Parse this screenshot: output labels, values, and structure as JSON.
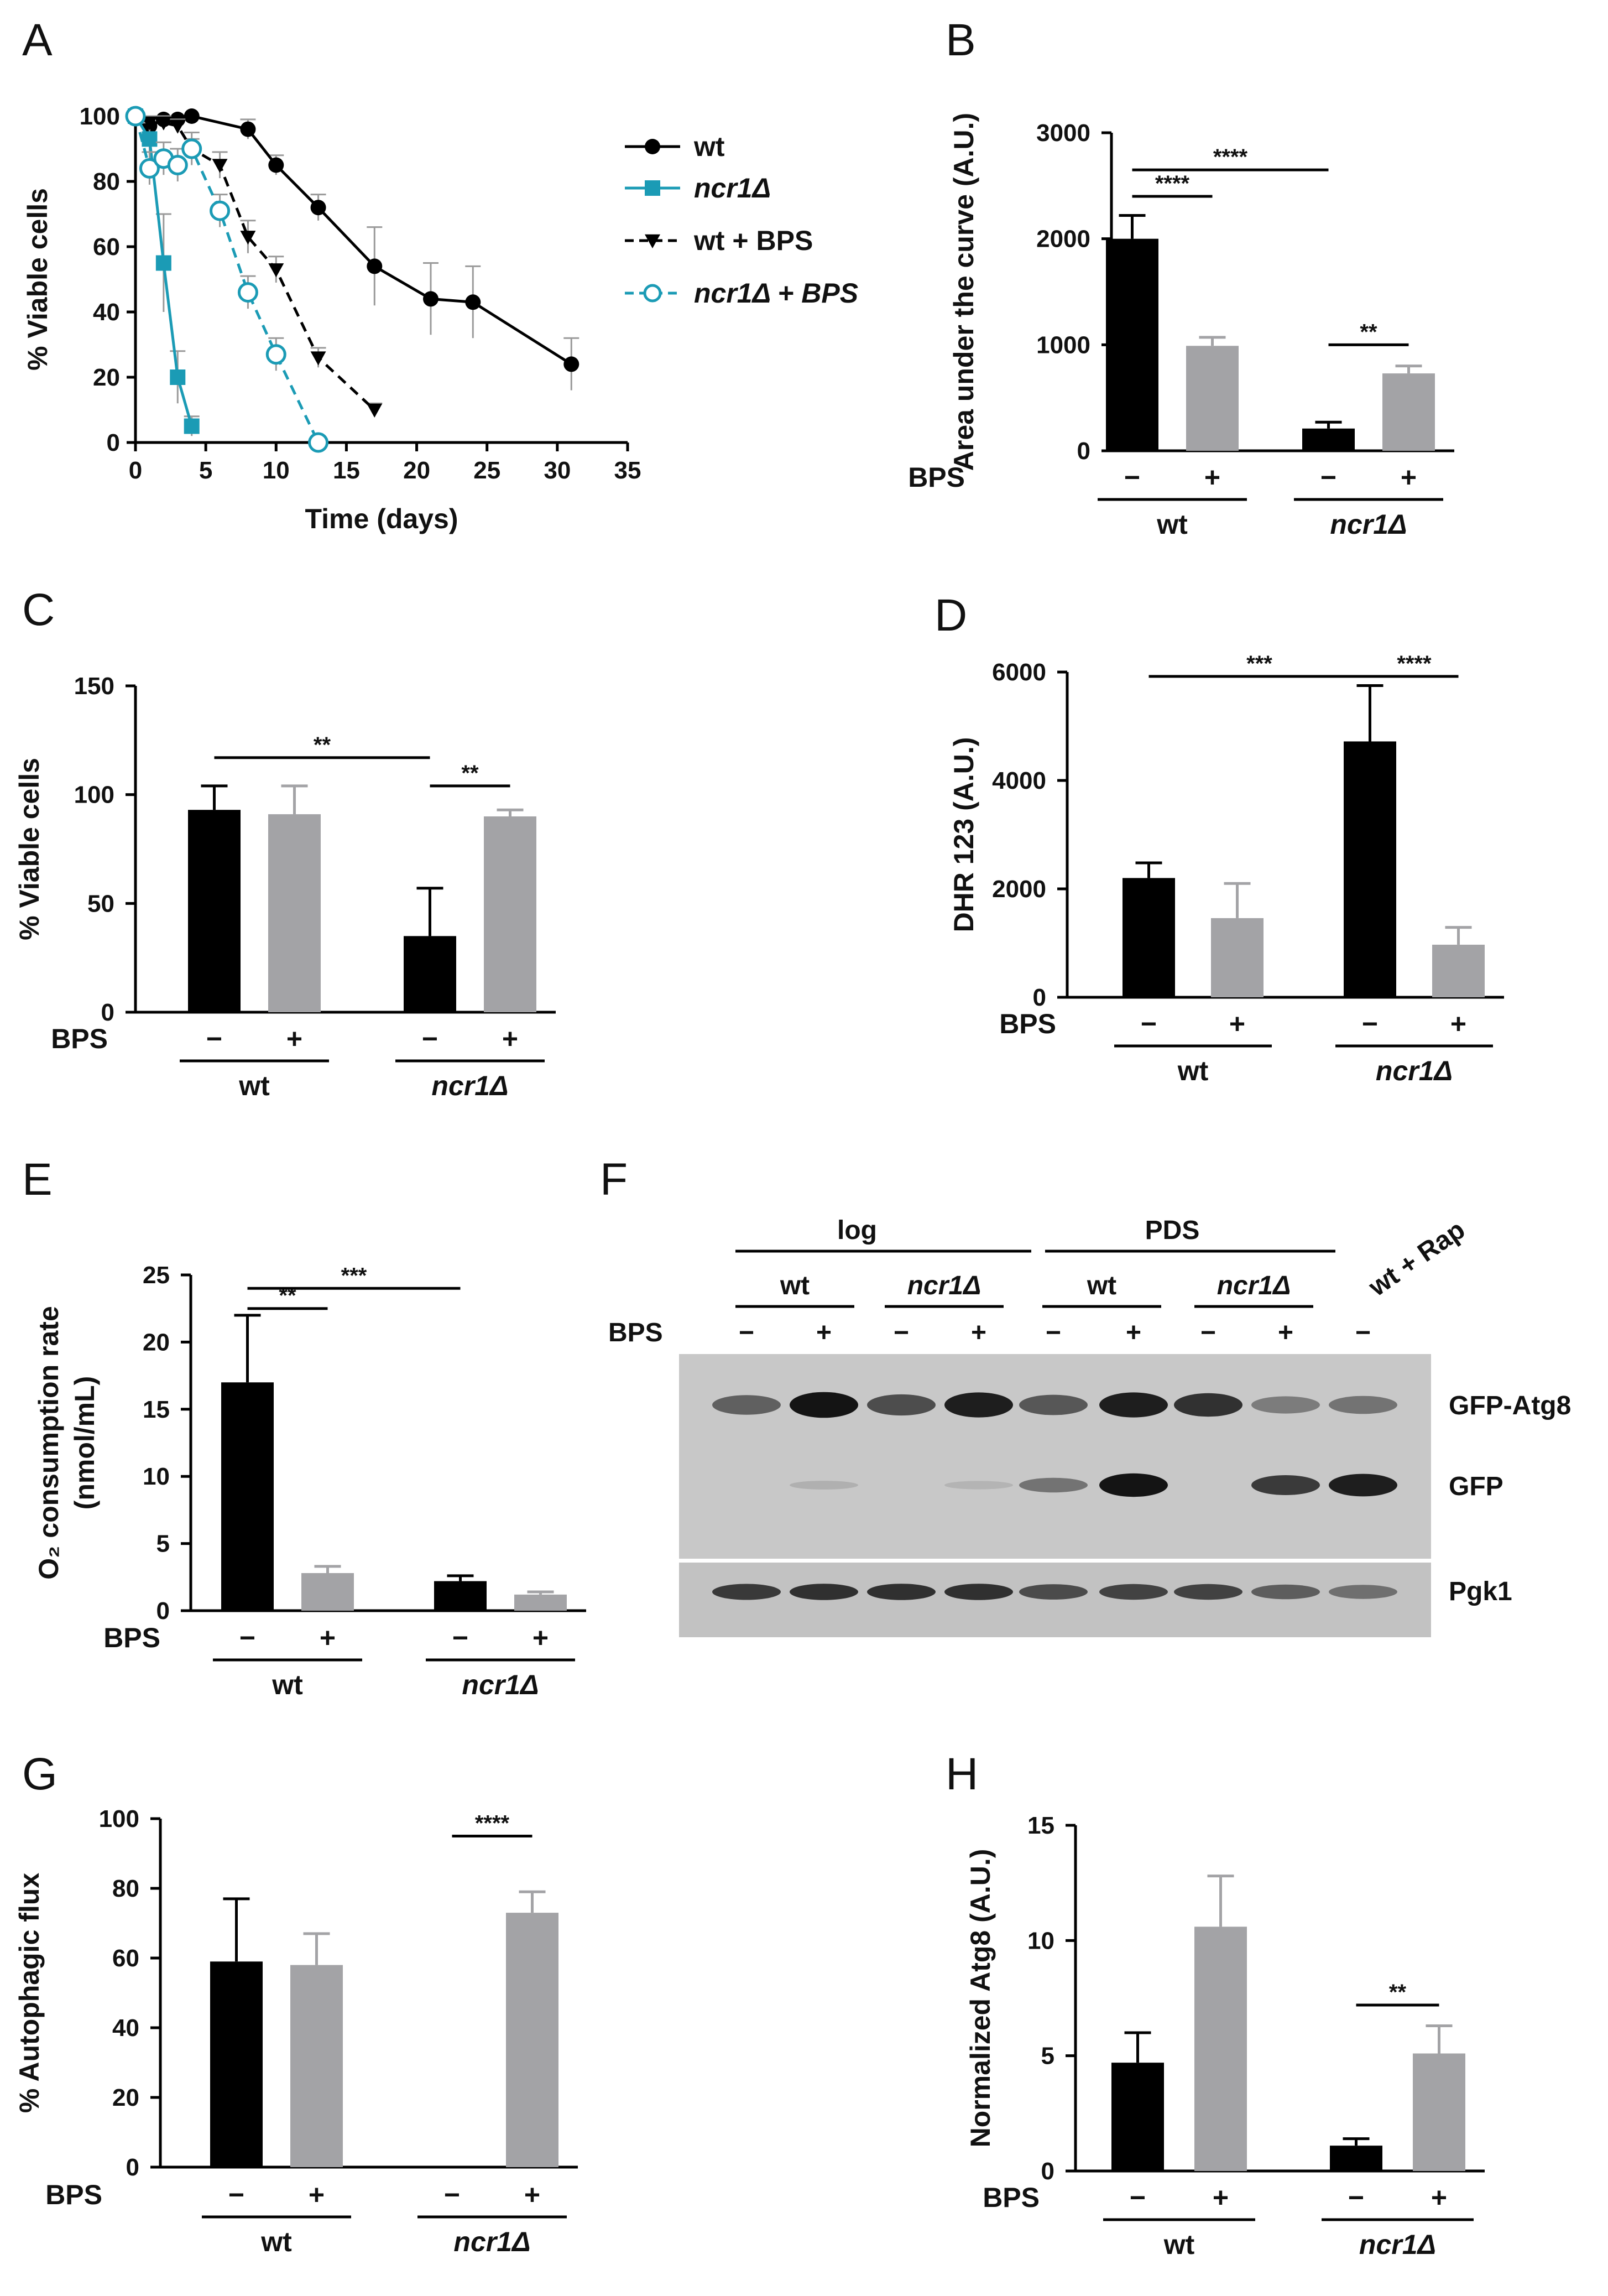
{
  "colors": {
    "black": "#000000",
    "grey": "#a3a3a6",
    "teal": "#1b9bb5",
    "error": "#9a9a9a"
  },
  "panels": {
    "A": {
      "letter": "A",
      "chart_data": {
        "type": "line",
        "xlabel": "Time (days)",
        "ylabel": "% Viable cells",
        "xlim": [
          0,
          35
        ],
        "ylim": [
          0,
          100
        ],
        "xticks": [
          "0",
          "5",
          "10",
          "15",
          "20",
          "25",
          "30",
          "35"
        ],
        "yticks": [
          "0",
          "20",
          "40",
          "60",
          "80",
          "100"
        ],
        "legend_position": "right",
        "series": [
          {
            "name": "wt",
            "color": "#000000",
            "dashed": false,
            "marker": "circle",
            "x": [
              0,
              1,
              2,
              3,
              4,
              8,
              10,
              13,
              17,
              21,
              24,
              31
            ],
            "y": [
              100,
              97,
              99,
              99,
              100,
              96,
              85,
              72,
              54,
              44,
              43,
              24
            ],
            "err": [
              0,
              2,
              2,
              2,
              2,
              3,
              3,
              4,
              12,
              11,
              11,
              8
            ]
          },
          {
            "name": "ncr1Δ",
            "color": "#1b9bb5",
            "dashed": false,
            "marker": "square",
            "x": [
              0,
              1,
              2,
              3,
              4
            ],
            "y": [
              100,
              93,
              55,
              20,
              5
            ],
            "err": [
              0,
              5,
              15,
              8,
              3
            ]
          },
          {
            "name": "wt + BPS",
            "color": "#000000",
            "dashed": true,
            "marker": "triangle",
            "x": [
              0,
              1,
              2,
              3,
              4,
              6,
              8,
              10,
              13,
              17
            ],
            "y": [
              100,
              98,
              98,
              97,
              90,
              85,
              63,
              53,
              26,
              10
            ],
            "err": [
              0,
              2,
              2,
              2,
              3,
              4,
              5,
              4,
              3,
              2
            ]
          },
          {
            "name": "ncr1Δ + BPS",
            "color": "#1b9bb5",
            "dashed": true,
            "marker": "open-circle",
            "x": [
              0,
              1,
              2,
              3,
              4,
              6,
              8,
              10,
              13
            ],
            "y": [
              100,
              84,
              87,
              85,
              90,
              71,
              46,
              27,
              0
            ],
            "err": [
              0,
              5,
              5,
              5,
              5,
              5,
              5,
              5,
              1
            ]
          }
        ]
      }
    },
    "B": {
      "letter": "B",
      "chart_data": {
        "type": "bar",
        "ylabel": "Area under the curve (A.U.)",
        "ylim": [
          0,
          3000
        ],
        "yticks": [
          "0",
          "1000",
          "2000",
          "3000"
        ],
        "row_label": "BPS",
        "groups": [
          "wt",
          "ncr1Δ"
        ],
        "bars": [
          {
            "group": "wt",
            "bps": "−",
            "value": 2000,
            "err": 220,
            "color": "#000000"
          },
          {
            "group": "wt",
            "bps": "+",
            "value": 990,
            "err": 80,
            "color": "#a3a3a6"
          },
          {
            "group": "ncr1Δ",
            "bps": "−",
            "value": 210,
            "err": 60,
            "color": "#000000"
          },
          {
            "group": "ncr1Δ",
            "bps": "+",
            "value": 730,
            "err": 70,
            "color": "#a3a3a6"
          }
        ],
        "significance": [
          {
            "from": 0,
            "to": 1,
            "label": "****",
            "level": 2400
          },
          {
            "from": 0,
            "to": 2,
            "label": "****",
            "level": 2650
          },
          {
            "from": 2,
            "to": 3,
            "label": "**",
            "level": 1000
          }
        ]
      }
    },
    "C": {
      "letter": "C",
      "chart_data": {
        "type": "bar",
        "ylabel": "% Viable cells",
        "ylim": [
          0,
          150
        ],
        "yticks": [
          "0",
          "50",
          "100",
          "150"
        ],
        "row_label": "BPS",
        "groups": [
          "wt",
          "ncr1Δ"
        ],
        "bars": [
          {
            "group": "wt",
            "bps": "−",
            "value": 93,
            "err": 11,
            "color": "#000000"
          },
          {
            "group": "wt",
            "bps": "+",
            "value": 91,
            "err": 13,
            "color": "#a3a3a6"
          },
          {
            "group": "ncr1Δ",
            "bps": "−",
            "value": 35,
            "err": 22,
            "color": "#000000"
          },
          {
            "group": "ncr1Δ",
            "bps": "+",
            "value": 90,
            "err": 3,
            "color": "#a3a3a6"
          }
        ],
        "significance": [
          {
            "from": 0,
            "to": 2,
            "label": "**",
            "level": 117
          },
          {
            "from": 2,
            "to": 3,
            "label": "**",
            "level": 104
          }
        ]
      }
    },
    "D": {
      "letter": "D",
      "chart_data": {
        "type": "bar",
        "ylabel": "DHR 123 (A.U.)",
        "ylim": [
          0,
          6000
        ],
        "yticks": [
          "0",
          "2000",
          "4000",
          "6000"
        ],
        "row_label": "BPS",
        "groups": [
          "wt",
          "ncr1Δ"
        ],
        "bars": [
          {
            "group": "wt",
            "bps": "−",
            "value": 2200,
            "err": 280,
            "color": "#000000"
          },
          {
            "group": "wt",
            "bps": "+",
            "value": 1460,
            "err": 640,
            "color": "#a3a3a6"
          },
          {
            "group": "ncr1Δ",
            "bps": "−",
            "value": 4720,
            "err": 1030,
            "color": "#000000"
          },
          {
            "group": "ncr1Δ",
            "bps": "+",
            "value": 970,
            "err": 320,
            "color": "#a3a3a6"
          }
        ],
        "significance": [
          {
            "from": 0,
            "to": 2,
            "label": "***",
            "level": 5920
          },
          {
            "from": 2,
            "to": 3,
            "label": "****",
            "level": 5920
          }
        ]
      }
    },
    "E": {
      "letter": "E",
      "chart_data": {
        "type": "bar",
        "ylabel_line1": "O₂ consumption rate",
        "ylabel_line2": "(nmol/mL)",
        "ylim": [
          0,
          25
        ],
        "yticks": [
          "0",
          "5",
          "10",
          "15",
          "20",
          "25"
        ],
        "row_label": "BPS",
        "groups": [
          "wt",
          "ncr1Δ"
        ],
        "bars": [
          {
            "group": "wt",
            "bps": "−",
            "value": 17,
            "err": 5,
            "color": "#000000"
          },
          {
            "group": "wt",
            "bps": "+",
            "value": 2.8,
            "err": 0.5,
            "color": "#a3a3a6"
          },
          {
            "group": "ncr1Δ",
            "bps": "−",
            "value": 2.2,
            "err": 0.4,
            "color": "#000000"
          },
          {
            "group": "ncr1Δ",
            "bps": "+",
            "value": 1.2,
            "err": 0.2,
            "color": "#a3a3a6"
          }
        ],
        "significance": [
          {
            "from": 0,
            "to": 1,
            "label": "**",
            "level": 22.5
          },
          {
            "from": 0,
            "to": 2,
            "label": "***",
            "level": 24
          }
        ]
      }
    },
    "F": {
      "letter": "F",
      "top_groups": [
        "log",
        "PDS"
      ],
      "strains": [
        "wt",
        "ncr1Δ",
        "wt",
        "ncr1Δ"
      ],
      "extra_lane": "wt + Rap",
      "row_label": "BPS",
      "lane_bps": [
        "−",
        "+",
        "−",
        "+",
        "−",
        "+",
        "−",
        "+",
        "−"
      ],
      "band_labels": [
        "GFP-Atg8",
        "GFP",
        "Pgk1"
      ],
      "gfp_atg8_intensity": [
        0.55,
        0.95,
        0.65,
        0.9,
        0.6,
        0.9,
        0.8,
        0.4,
        0.45
      ],
      "gfp_intensity": [
        0.0,
        0.12,
        0.0,
        0.1,
        0.45,
        0.95,
        0.0,
        0.75,
        0.9
      ],
      "pgk1_intensity": [
        0.75,
        0.8,
        0.8,
        0.8,
        0.65,
        0.7,
        0.7,
        0.55,
        0.45
      ]
    },
    "G": {
      "letter": "G",
      "chart_data": {
        "type": "bar",
        "ylabel": "% Autophagic flux",
        "ylim": [
          0,
          100
        ],
        "yticks": [
          "0",
          "20",
          "40",
          "60",
          "80",
          "100"
        ],
        "row_label": "BPS",
        "groups": [
          "wt",
          "ncr1Δ"
        ],
        "bars": [
          {
            "group": "wt",
            "bps": "−",
            "value": 59,
            "err": 18,
            "color": "#000000"
          },
          {
            "group": "wt",
            "bps": "+",
            "value": 58,
            "err": 9,
            "color": "#a3a3a6"
          },
          {
            "group": "ncr1Δ",
            "bps": "−",
            "value": 0,
            "err": 0,
            "color": "#000000"
          },
          {
            "group": "ncr1Δ",
            "bps": "+",
            "value": 73,
            "err": 6,
            "color": "#a3a3a6"
          }
        ],
        "significance": [
          {
            "from": 2,
            "to": 3,
            "label": "****",
            "level": 95
          }
        ]
      }
    },
    "H": {
      "letter": "H",
      "chart_data": {
        "type": "bar",
        "ylabel": "Normalized Atg8 (A.U.)",
        "ylim": [
          0,
          15
        ],
        "yticks": [
          "0",
          "5",
          "10",
          "15"
        ],
        "row_label": "BPS",
        "groups": [
          "wt",
          "ncr1Δ"
        ],
        "bars": [
          {
            "group": "wt",
            "bps": "−",
            "value": 4.7,
            "err": 1.3,
            "color": "#000000"
          },
          {
            "group": "wt",
            "bps": "+",
            "value": 10.6,
            "err": 2.2,
            "color": "#a3a3a6"
          },
          {
            "group": "ncr1Δ",
            "bps": "−",
            "value": 1.1,
            "err": 0.3,
            "color": "#000000"
          },
          {
            "group": "ncr1Δ",
            "bps": "+",
            "value": 5.1,
            "err": 1.2,
            "color": "#a3a3a6"
          }
        ],
        "significance": [
          {
            "from": 2,
            "to": 3,
            "label": "**",
            "level": 7.2
          }
        ]
      }
    }
  }
}
